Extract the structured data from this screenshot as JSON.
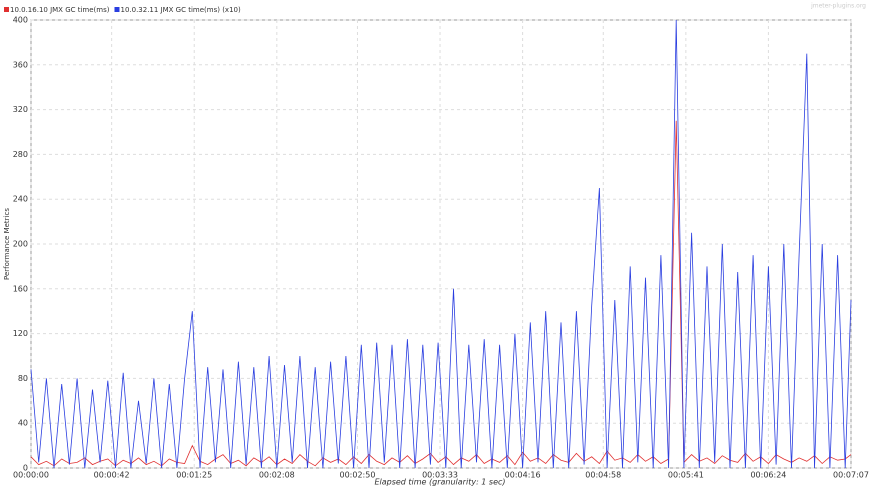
{
  "chart_data": {
    "type": "line",
    "watermark": "jmeter-plugins.org",
    "xlabel": "Elapsed time (granularity: 1 sec)",
    "ylabel": "Performance Metrics",
    "x": [
      0,
      4,
      8,
      12,
      16,
      20,
      24,
      28,
      32,
      36,
      40,
      44,
      48,
      52,
      56,
      60,
      64,
      68,
      72,
      76,
      80,
      84,
      88,
      92,
      96,
      100,
      104,
      108,
      112,
      116,
      120,
      124,
      128,
      132,
      136,
      140,
      144,
      148,
      152,
      156,
      160,
      164,
      168,
      172,
      176,
      180,
      184,
      188,
      192,
      196,
      200,
      204,
      208,
      212,
      216,
      220,
      224,
      228,
      232,
      236,
      240,
      244,
      248,
      252,
      256,
      260,
      264,
      268,
      272,
      276,
      280,
      284,
      288,
      292,
      296,
      300,
      304,
      308,
      312,
      316,
      320,
      324,
      328,
      332,
      336,
      340,
      344,
      348,
      352,
      356,
      360,
      364,
      368,
      372,
      376,
      380,
      384,
      388,
      392,
      396,
      400,
      404,
      408,
      412,
      416,
      420,
      424,
      427
    ],
    "series": [
      {
        "name": "10.0.16.10 JMX GC time(ms)",
        "color": "#e03030",
        "values": [
          10,
          3,
          6,
          2,
          8,
          4,
          5,
          9,
          3,
          6,
          8,
          2,
          7,
          4,
          9,
          3,
          6,
          2,
          8,
          5,
          4,
          20,
          6,
          3,
          8,
          12,
          4,
          7,
          2,
          9,
          5,
          10,
          3,
          8,
          4,
          12,
          6,
          2,
          9,
          5,
          8,
          3,
          10,
          4,
          12,
          6,
          3,
          9,
          5,
          11,
          4,
          8,
          13,
          5,
          10,
          3,
          9,
          6,
          12,
          4,
          8,
          5,
          11,
          3,
          14,
          6,
          9,
          4,
          12,
          7,
          5,
          13,
          6,
          10,
          4,
          15,
          7,
          9,
          5,
          12,
          6,
          10,
          4,
          8,
          310,
          5,
          12,
          6,
          9,
          4,
          11,
          7,
          5,
          13,
          6,
          10,
          4,
          12,
          8,
          5,
          9,
          6,
          11,
          4,
          10,
          7,
          8,
          12
        ]
      },
      {
        "name": "10.0.32.11 JMX GC time(ms) (x10)",
        "color": "#2a3ee0",
        "values": [
          88,
          5,
          80,
          0,
          75,
          3,
          80,
          0,
          70,
          5,
          78,
          0,
          85,
          0,
          60,
          4,
          80,
          0,
          75,
          0,
          80,
          140,
          0,
          90,
          5,
          88,
          0,
          95,
          3,
          90,
          0,
          100,
          0,
          92,
          5,
          100,
          0,
          90,
          0,
          95,
          4,
          100,
          0,
          110,
          0,
          112,
          5,
          110,
          0,
          115,
          0,
          110,
          3,
          112,
          0,
          160,
          0,
          110,
          5,
          115,
          0,
          110,
          0,
          120,
          0,
          130,
          5,
          140,
          0,
          130,
          0,
          140,
          3,
          145,
          250,
          0,
          150,
          0,
          180,
          5,
          170,
          0,
          190,
          0,
          400,
          0,
          210,
          0,
          180,
          5,
          200,
          0,
          175,
          0,
          190,
          0,
          180,
          3,
          200,
          0,
          190,
          370,
          0,
          200,
          0,
          190,
          0,
          150
        ]
      }
    ],
    "xlim": [
      0,
      427
    ],
    "xticks": [
      {
        "value": 0,
        "label": "00:00:00"
      },
      {
        "value": 42,
        "label": "00:00:42"
      },
      {
        "value": 85,
        "label": "00:01:25"
      },
      {
        "value": 128,
        "label": "00:02:08"
      },
      {
        "value": 170,
        "label": "00:02:50"
      },
      {
        "value": 213,
        "label": "00:03:33"
      },
      {
        "value": 256,
        "label": "00:04:16"
      },
      {
        "value": 298,
        "label": "00:04:58"
      },
      {
        "value": 341,
        "label": "00:05:41"
      },
      {
        "value": 384,
        "label": "00:06:24"
      },
      {
        "value": 427,
        "label": "00:07:07"
      }
    ],
    "ylim": [
      0,
      400
    ],
    "yticks": [
      0,
      40,
      80,
      120,
      160,
      200,
      240,
      280,
      320,
      360,
      400
    ],
    "grid": true
  }
}
